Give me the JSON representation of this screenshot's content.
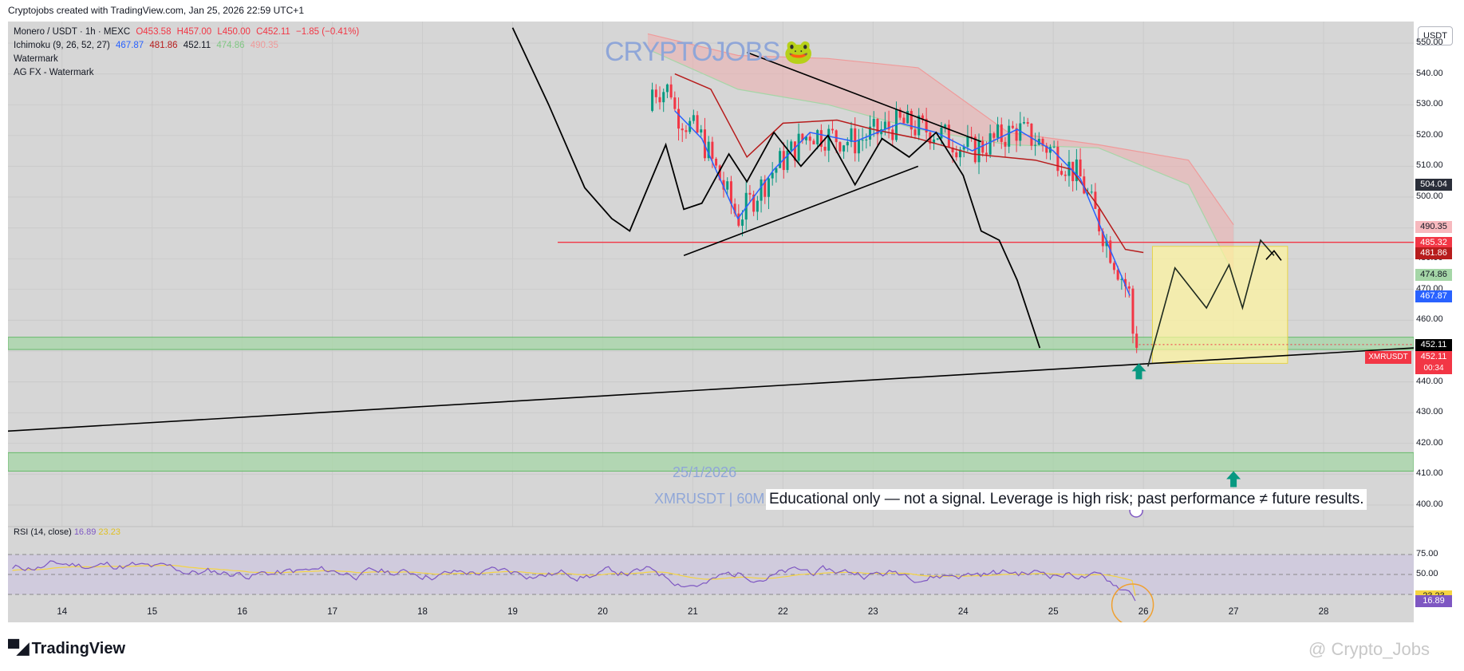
{
  "header": {
    "text": "Cryptojobs created with TradingView.com, Jan 25, 2026 22:59 UTC+1"
  },
  "legend": {
    "line1": {
      "title": "Monero / USDT · 1h · MEXC",
      "o": "O453.58",
      "h": "H457.00",
      "l": "L450.00",
      "c": "C452.11",
      "chg": "−1.85 (−0.41%)"
    },
    "line2": {
      "title": "Ichimoku (9, 26, 52, 27)",
      "v1": "467.87",
      "v2": "481.86",
      "v3": "452.11",
      "v4": "474.86",
      "v5": "490.35"
    },
    "line3": "Watermark",
    "line4": "AG FX - Watermark"
  },
  "watermark": {
    "brand": "CRYPTOJOBS",
    "frog": "🐸",
    "date": "25/1/2026",
    "symbol": "XMRUSDT | 60M"
  },
  "disclaimer": "Educational only — not a signal. Leverage is high risk; past performance ≠ future results.",
  "price_axis": {
    "unit": "USDT",
    "labels": [
      "550.00",
      "540.00",
      "530.00",
      "520.00",
      "510.00",
      "500.00",
      "490.00",
      "480.00",
      "470.00",
      "460.00",
      "450.00",
      "440.00",
      "430.00",
      "420.00",
      "410.00",
      "400.00"
    ],
    "tags": [
      {
        "value": "504.04",
        "color": "#2a2e39"
      },
      {
        "value": "490.35",
        "color": "#f7b9be",
        "text_color": "#131722"
      },
      {
        "value": "485.32",
        "color": "#f23645"
      },
      {
        "value": "481.86",
        "color": "#b71c1c"
      },
      {
        "value": "474.86",
        "color": "#a5d6a7",
        "text_color": "#131722"
      },
      {
        "value": "467.87",
        "color": "#2962ff"
      },
      {
        "value": "452.11",
        "color": "#000000"
      },
      {
        "value": "452.11",
        "color": "#f23645"
      }
    ],
    "symbol_tag": "XMRUSDT",
    "countdown": "00:34"
  },
  "time_axis": {
    "labels": [
      "14",
      "15",
      "16",
      "17",
      "18",
      "19",
      "20",
      "21",
      "22",
      "23",
      "24",
      "25",
      "26",
      "27",
      "28"
    ]
  },
  "rsi": {
    "title": "RSI (14, close)",
    "value": "16.89",
    "ma": "23.23",
    "levels": [
      "75.00",
      "50.00"
    ],
    "tags": [
      {
        "value": "23.23",
        "color": "#f5d442"
      },
      {
        "value": "16.89",
        "color": "#7e57c2"
      }
    ]
  },
  "footer": {
    "logo": "TradingView",
    "credit": "@ Crypto_Jobs"
  },
  "colors": {
    "bg": "#d6d6d6",
    "up": "#089981",
    "down": "#f23645",
    "tenkan": "#2962ff",
    "kijun": "#b71c1c",
    "lagging": "#000000",
    "support_zone": "#a5d6a7",
    "projection_box": "#fff59d",
    "rsi": "#7e57c2",
    "rsi_ma": "#f5d442"
  },
  "chart_data": {
    "type": "candlestick",
    "symbol": "XMRUSDT",
    "timeframe": "1h",
    "x_range_days": [
      13.4,
      29.0
    ],
    "ylim": [
      393,
      557
    ],
    "resistance_line": 485.32,
    "support_zones": [
      [
        450.5,
        454.5
      ],
      [
        411,
        417
      ]
    ],
    "projection_box": {
      "x": [
        26.1,
        27.6
      ],
      "y": [
        446,
        484
      ]
    },
    "triangle": {
      "upper": [
        [
          21.6,
          547
        ],
        [
          24.2,
          518
        ]
      ],
      "lower": [
        [
          20.9,
          481
        ],
        [
          23.5,
          510
        ]
      ]
    },
    "rising_trendline": [
      [
        13.4,
        424
      ],
      [
        29.0,
        451
      ]
    ],
    "projection_path": [
      [
        26.05,
        445
      ],
      [
        26.35,
        477
      ],
      [
        26.7,
        464
      ],
      [
        26.95,
        478
      ],
      [
        27.1,
        464
      ],
      [
        27.3,
        486
      ],
      [
        27.45,
        481
      ]
    ],
    "current_price": 452.11,
    "arrows_up": [
      [
        25.95,
        446
      ],
      [
        27.0,
        411
      ]
    ],
    "tenkan": [
      [
        20.8,
        528
      ],
      [
        21.1,
        519
      ],
      [
        21.5,
        493
      ],
      [
        21.9,
        509
      ],
      [
        22.3,
        521
      ],
      [
        22.8,
        518
      ],
      [
        23.3,
        524
      ],
      [
        23.7,
        521
      ],
      [
        24.1,
        515
      ],
      [
        24.6,
        522
      ],
      [
        25.0,
        515
      ],
      [
        25.3,
        506
      ],
      [
        25.6,
        485
      ],
      [
        25.85,
        468
      ]
    ],
    "kijun": [
      [
        20.8,
        540
      ],
      [
        21.2,
        535
      ],
      [
        21.6,
        513
      ],
      [
        22.0,
        524
      ],
      [
        22.6,
        525
      ],
      [
        23.0,
        522
      ],
      [
        23.5,
        519
      ],
      [
        24.1,
        514
      ],
      [
        24.8,
        512
      ],
      [
        25.2,
        509
      ],
      [
        25.5,
        497
      ],
      [
        25.8,
        483
      ],
      [
        26.0,
        482
      ]
    ],
    "lagging_span": [
      [
        19.0,
        555
      ],
      [
        19.4,
        530
      ],
      [
        19.8,
        503
      ],
      [
        20.1,
        493
      ],
      [
        20.3,
        489
      ],
      [
        20.5,
        503
      ],
      [
        20.7,
        517
      ],
      [
        20.9,
        496
      ],
      [
        21.1,
        498
      ],
      [
        21.4,
        514
      ],
      [
        21.6,
        505
      ],
      [
        21.9,
        521
      ],
      [
        22.2,
        510
      ],
      [
        22.5,
        520
      ],
      [
        22.8,
        504
      ],
      [
        23.1,
        519
      ],
      [
        23.4,
        513
      ],
      [
        23.7,
        521
      ],
      [
        24.0,
        507
      ],
      [
        24.2,
        489
      ],
      [
        24.4,
        486
      ],
      [
        24.6,
        473
      ],
      [
        24.85,
        451
      ]
    ],
    "cloud_upper": [
      [
        20.5,
        553
      ],
      [
        21.5,
        546
      ],
      [
        22.5,
        545
      ],
      [
        23.5,
        542
      ],
      [
        24.5,
        521
      ],
      [
        25.5,
        517
      ],
      [
        26.5,
        512
      ],
      [
        27.0,
        491
      ]
    ],
    "cloud_lower": [
      [
        20.5,
        548
      ],
      [
        21.5,
        535
      ],
      [
        22.5,
        530
      ],
      [
        23.5,
        522
      ],
      [
        24.5,
        517
      ],
      [
        25.5,
        516
      ],
      [
        26.5,
        504
      ],
      [
        27.0,
        475
      ]
    ],
    "ohlc_last": {
      "open": 453.58,
      "high": 457.0,
      "low": 450.0,
      "close": 452.11,
      "change": -1.85,
      "change_pct": -0.41
    },
    "rsi_last": 16.89,
    "rsi_ma_last": 23.23
  }
}
